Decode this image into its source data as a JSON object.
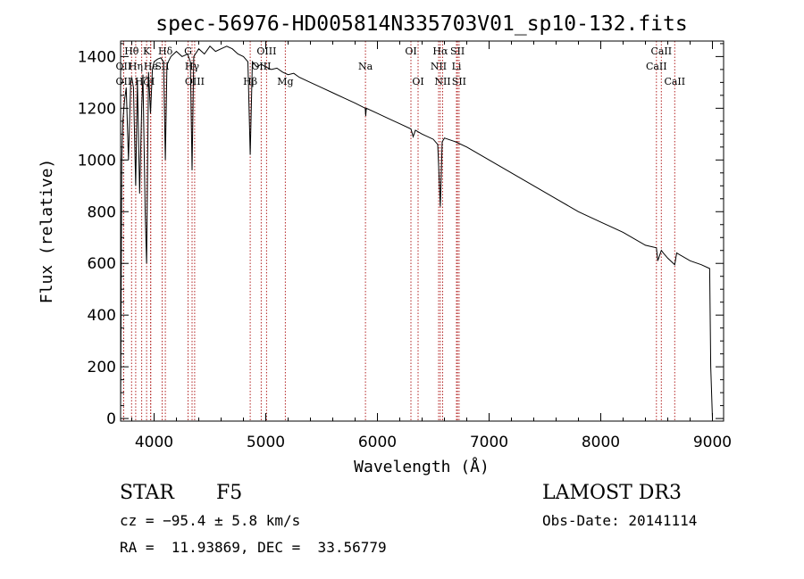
{
  "chart_data": {
    "type": "line",
    "title": "spec-56976-HD005814N335703V01_sp10-132.fits",
    "xlabel": "Wavelength (Å)",
    "ylabel": "Flux (relative)",
    "xlim": [
      3700,
      9100
    ],
    "ylim": [
      -10,
      1460
    ],
    "xticks": [
      4000,
      5000,
      6000,
      7000,
      8000,
      9000
    ],
    "xtick_labels": [
      "4000",
      "5000",
      "6000",
      "7000",
      "8000",
      "9000"
    ],
    "yticks": [
      0,
      200,
      400,
      600,
      800,
      1000,
      1200,
      1400
    ],
    "ytick_labels": [
      "0",
      "200",
      "400",
      "600",
      "800",
      "1000",
      "1200",
      "1400"
    ],
    "grid": false,
    "series": [
      {
        "name": "spectrum",
        "x": [
          3700,
          3710,
          3720,
          3735,
          3750,
          3770,
          3790,
          3800,
          3815,
          3835,
          3850,
          3870,
          3889,
          3900,
          3920,
          3933,
          3950,
          3968,
          3985,
          4000,
          4030,
          4060,
          4085,
          4101,
          4115,
          4150,
          4200,
          4250,
          4300,
          4325,
          4340,
          4355,
          4400,
          4450,
          4500,
          4550,
          4600,
          4650,
          4700,
          4750,
          4800,
          4840,
          4861,
          4880,
          4920,
          4960,
          5000,
          5050,
          5100,
          5150,
          5200,
          5250,
          5300,
          5400,
          5500,
          5600,
          5700,
          5800,
          5890,
          5895,
          5900,
          6000,
          6100,
          6200,
          6300,
          6320,
          6340,
          6400,
          6500,
          6540,
          6563,
          6580,
          6600,
          6700,
          6800,
          7000,
          7200,
          7400,
          7600,
          7800,
          8000,
          8200,
          8400,
          8498,
          8510,
          8542,
          8560,
          8600,
          8662,
          8680,
          8800,
          8900,
          8975,
          8985,
          9000
        ],
        "y": [
          20,
          1000,
          1150,
          1230,
          1280,
          1000,
          1300,
          1320,
          1280,
          900,
          1310,
          870,
          1200,
          1330,
          800,
          600,
          1340,
          1180,
          1350,
          1380,
          1390,
          1395,
          1380,
          1000,
          1370,
          1400,
          1420,
          1400,
          1410,
          1380,
          960,
          1400,
          1430,
          1410,
          1440,
          1420,
          1430,
          1440,
          1430,
          1410,
          1400,
          1380,
          1020,
          1380,
          1360,
          1370,
          1360,
          1350,
          1355,
          1340,
          1330,
          1335,
          1320,
          1300,
          1280,
          1260,
          1240,
          1220,
          1200,
          1170,
          1200,
          1180,
          1160,
          1140,
          1120,
          1090,
          1115,
          1100,
          1080,
          1060,
          820,
          1070,
          1085,
          1070,
          1050,
          1000,
          950,
          900,
          850,
          800,
          760,
          720,
          670,
          660,
          610,
          650,
          640,
          620,
          595,
          640,
          610,
          595,
          580,
          200,
          0
        ]
      }
    ],
    "lines": [
      {
        "label": "Hθ",
        "wavelength": 3798,
        "row": 1
      },
      {
        "label": "OII",
        "wavelength": 3727,
        "row": 2
      },
      {
        "label": "Hη",
        "wavelength": 3835,
        "row": 2
      },
      {
        "label": "OII",
        "wavelength": 3727,
        "row": 3
      },
      {
        "label": "Hζ",
        "wavelength": 3889,
        "row": 3
      },
      {
        "label": "K",
        "wavelength": 3933,
        "row": 1
      },
      {
        "label": "He",
        "wavelength": 3970,
        "row": 2
      },
      {
        "label": "H",
        "wavelength": 3968,
        "row": 3
      },
      {
        "label": "Hδ",
        "wavelength": 4101,
        "row": 1
      },
      {
        "label": "SII",
        "wavelength": 4072,
        "row": 2
      },
      {
        "label": "G",
        "wavelength": 4304,
        "row": 1
      },
      {
        "label": "Hγ",
        "wavelength": 4340,
        "row": 2
      },
      {
        "label": "OIII",
        "wavelength": 4363,
        "row": 3
      },
      {
        "label": "OIII",
        "wavelength": 5007,
        "row": 1
      },
      {
        "label": "OIII",
        "wavelength": 4959,
        "row": 2
      },
      {
        "label": "Mg",
        "wavelength": 5175,
        "row": 3
      },
      {
        "label": "Hβ",
        "wavelength": 4861,
        "row": 3
      },
      {
        "label": "Na",
        "wavelength": 5893,
        "row": 2
      },
      {
        "label": "OI",
        "wavelength": 6300,
        "row": 1
      },
      {
        "label": "OI",
        "wavelength": 6364,
        "row": 3
      },
      {
        "label": "Hα",
        "wavelength": 6563,
        "row": 1
      },
      {
        "label": "NII",
        "wavelength": 6548,
        "row": 2
      },
      {
        "label": "NII",
        "wavelength": 6584,
        "row": 3
      },
      {
        "label": "SII",
        "wavelength": 6717,
        "row": 1
      },
      {
        "label": "Li",
        "wavelength": 6708,
        "row": 2
      },
      {
        "label": "SII",
        "wavelength": 6731,
        "row": 3
      },
      {
        "label": "CaII",
        "wavelength": 8542,
        "row": 1
      },
      {
        "label": "CaII",
        "wavelength": 8498,
        "row": 2
      },
      {
        "label": "CaII",
        "wavelength": 8662,
        "row": 3
      }
    ]
  },
  "info": {
    "object_class": "STAR",
    "subclass": "F5",
    "survey": "LAMOST DR3",
    "cz": "cz = −95.4 ± 5.8 km/s",
    "obs_date": "Obs-Date: 20141114",
    "coords": "RA =  11.93869, DEC =  33.56779"
  },
  "colors": {
    "line_marker": "#b22222",
    "spectrum": "#000000"
  }
}
